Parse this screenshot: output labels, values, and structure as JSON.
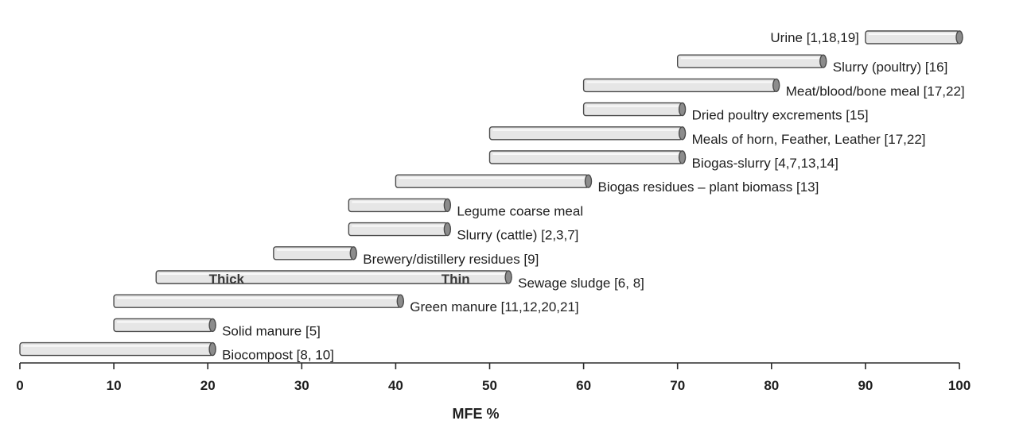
{
  "chart_data": {
    "type": "bar",
    "orientation": "horizontal",
    "style": "floating range cylinders",
    "xlabel": "MFE %",
    "xlim": [
      0,
      100
    ],
    "xticks": [
      0,
      10,
      20,
      30,
      40,
      50,
      60,
      70,
      80,
      90,
      100
    ],
    "colors": {
      "bar_fill": "#e6e6e6",
      "bar_stroke": "#4a4a4a",
      "cap_fill": "#8c8c8c",
      "text": "#1e1e1e"
    },
    "bars": [
      {
        "label": "Urine [1,18,19]",
        "start": 90,
        "end": 100
      },
      {
        "label": "Slurry (poultry) [16]",
        "start": 70,
        "end": 85.5
      },
      {
        "label": "Meat/blood/bone meal  [17,22]",
        "start": 60,
        "end": 80.5
      },
      {
        "label": "Dried poultry excrements [15]",
        "start": 60,
        "end": 70.5
      },
      {
        "label": "Meals of horn, Feather, Leather [17,22]",
        "start": 50,
        "end": 70.5
      },
      {
        "label": "Biogas-slurry [4,7,13,14]",
        "start": 50,
        "end": 70.5
      },
      {
        "label": "Biogas residues – plant biomass [13]",
        "start": 40,
        "end": 60.5
      },
      {
        "label": "Legume coarse meal",
        "start": 35,
        "end": 45.5
      },
      {
        "label": "Slurry (cattle) [2,3,7]",
        "start": 35,
        "end": 45.5
      },
      {
        "label": "Brewery/distillery residues [9]",
        "start": 27,
        "end": 35.5
      },
      {
        "label": "Sewage sludge [6, 8]",
        "start": 14.5,
        "end": 52,
        "inner_labels": [
          "Thick",
          "Thin"
        ]
      },
      {
        "label": "Green manure [11,12,20,21]",
        "start": 10,
        "end": 40.5
      },
      {
        "label": "Solid   manure [5]",
        "start": 10,
        "end": 20.5
      },
      {
        "label": "Biocompost [8, 10]",
        "start": 0,
        "end": 20.5
      }
    ]
  }
}
